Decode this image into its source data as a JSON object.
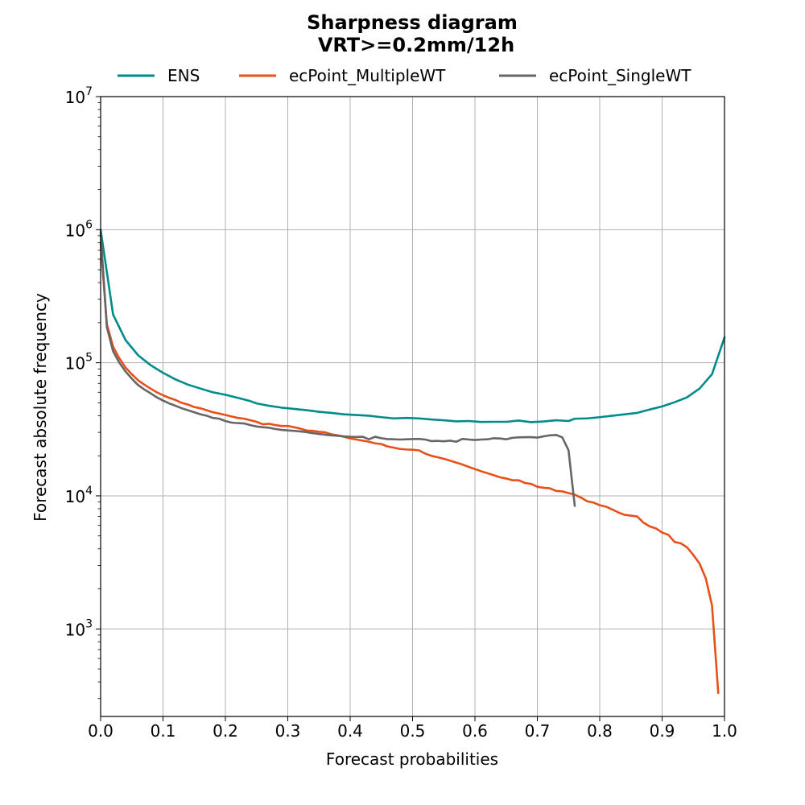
{
  "chart_data": {
    "type": "line",
    "title": "Sharpness diagram",
    "subtitle": "VRT>=0.2mm/12h",
    "xlabel": "Forecast probabilities",
    "ylabel": "Forecast absolute frequency",
    "xlim": [
      0.0,
      1.0
    ],
    "ylim": [
      220,
      10000000
    ],
    "yscale": "log",
    "grid": true,
    "legend_placement": "top-center",
    "x_ticks": [
      "0.0",
      "0.1",
      "0.2",
      "0.3",
      "0.4",
      "0.5",
      "0.6",
      "0.7",
      "0.8",
      "0.9",
      "1.0"
    ],
    "y_ticks": [
      {
        "base": "10",
        "exp": "3",
        "value": 1000
      },
      {
        "base": "10",
        "exp": "4",
        "value": 10000
      },
      {
        "base": "10",
        "exp": "5",
        "value": 100000
      },
      {
        "base": "10",
        "exp": "6",
        "value": 1000000
      },
      {
        "base": "10",
        "exp": "7",
        "value": 10000000
      }
    ],
    "series": [
      {
        "name": "ENS",
        "color": "#008b8b",
        "points": [
          [
            0.0,
            1000000
          ],
          [
            0.02,
            230000
          ],
          [
            0.04,
            148000
          ],
          [
            0.06,
            114000
          ],
          [
            0.08,
            96000
          ],
          [
            0.1,
            84000
          ],
          [
            0.12,
            75000
          ],
          [
            0.14,
            68500
          ],
          [
            0.16,
            64000
          ],
          [
            0.18,
            60000
          ],
          [
            0.2,
            57500
          ],
          [
            0.22,
            54500
          ],
          [
            0.24,
            51500
          ],
          [
            0.25,
            49500
          ],
          [
            0.27,
            47500
          ],
          [
            0.29,
            46000
          ],
          [
            0.31,
            45000
          ],
          [
            0.33,
            44000
          ],
          [
            0.35,
            42800
          ],
          [
            0.37,
            42000
          ],
          [
            0.39,
            41000
          ],
          [
            0.41,
            40500
          ],
          [
            0.43,
            40000
          ],
          [
            0.45,
            39000
          ],
          [
            0.47,
            38200
          ],
          [
            0.49,
            38500
          ],
          [
            0.51,
            38200
          ],
          [
            0.53,
            37500
          ],
          [
            0.55,
            37000
          ],
          [
            0.57,
            36300
          ],
          [
            0.59,
            36500
          ],
          [
            0.61,
            35900
          ],
          [
            0.63,
            36000
          ],
          [
            0.65,
            36000
          ],
          [
            0.67,
            36800
          ],
          [
            0.69,
            35800
          ],
          [
            0.71,
            36200
          ],
          [
            0.73,
            37000
          ],
          [
            0.75,
            36500
          ],
          [
            0.76,
            38000
          ],
          [
            0.78,
            38200
          ],
          [
            0.8,
            39000
          ],
          [
            0.82,
            40000
          ],
          [
            0.84,
            41000
          ],
          [
            0.86,
            42000
          ],
          [
            0.88,
            44500
          ],
          [
            0.9,
            47000
          ],
          [
            0.92,
            50500
          ],
          [
            0.94,
            55000
          ],
          [
            0.96,
            64000
          ],
          [
            0.98,
            82000
          ],
          [
            1.0,
            155000
          ]
        ]
      },
      {
        "name": "ecPoint_MultipleWT",
        "color": "#e8501a",
        "points": [
          [
            0.0,
            800000
          ],
          [
            0.01,
            195000
          ],
          [
            0.02,
            132000
          ],
          [
            0.03,
            108000
          ],
          [
            0.04,
            92000
          ],
          [
            0.05,
            82000
          ],
          [
            0.06,
            74000
          ],
          [
            0.07,
            68500
          ],
          [
            0.08,
            64000
          ],
          [
            0.09,
            60000
          ],
          [
            0.1,
            57000
          ],
          [
            0.11,
            54500
          ],
          [
            0.12,
            52500
          ],
          [
            0.13,
            50000
          ],
          [
            0.14,
            48500
          ],
          [
            0.15,
            46500
          ],
          [
            0.16,
            45500
          ],
          [
            0.17,
            44000
          ],
          [
            0.18,
            42500
          ],
          [
            0.19,
            41500
          ],
          [
            0.2,
            40500
          ],
          [
            0.21,
            39500
          ],
          [
            0.22,
            38500
          ],
          [
            0.23,
            38000
          ],
          [
            0.24,
            37000
          ],
          [
            0.25,
            36000
          ],
          [
            0.26,
            34500
          ],
          [
            0.27,
            34800
          ],
          [
            0.28,
            34000
          ],
          [
            0.29,
            33500
          ],
          [
            0.3,
            33500
          ],
          [
            0.31,
            32800
          ],
          [
            0.32,
            32000
          ],
          [
            0.33,
            31000
          ],
          [
            0.34,
            30800
          ],
          [
            0.35,
            30300
          ],
          [
            0.36,
            30000
          ],
          [
            0.37,
            29000
          ],
          [
            0.38,
            28500
          ],
          [
            0.39,
            27800
          ],
          [
            0.4,
            27000
          ],
          [
            0.41,
            26500
          ],
          [
            0.42,
            26000
          ],
          [
            0.43,
            25500
          ],
          [
            0.44,
            24800
          ],
          [
            0.45,
            24500
          ],
          [
            0.46,
            23500
          ],
          [
            0.47,
            23000
          ],
          [
            0.48,
            22500
          ],
          [
            0.49,
            22300
          ],
          [
            0.5,
            22200
          ],
          [
            0.51,
            22000
          ],
          [
            0.52,
            20800
          ],
          [
            0.53,
            20000
          ],
          [
            0.54,
            19500
          ],
          [
            0.55,
            19000
          ],
          [
            0.56,
            18400
          ],
          [
            0.57,
            17800
          ],
          [
            0.58,
            17200
          ],
          [
            0.59,
            16500
          ],
          [
            0.6,
            15900
          ],
          [
            0.61,
            15300
          ],
          [
            0.62,
            14800
          ],
          [
            0.63,
            14300
          ],
          [
            0.64,
            13800
          ],
          [
            0.65,
            13500
          ],
          [
            0.66,
            13100
          ],
          [
            0.67,
            13100
          ],
          [
            0.68,
            12500
          ],
          [
            0.69,
            12300
          ],
          [
            0.7,
            11700
          ],
          [
            0.71,
            11500
          ],
          [
            0.72,
            11400
          ],
          [
            0.73,
            10900
          ],
          [
            0.74,
            10800
          ],
          [
            0.75,
            10500
          ],
          [
            0.76,
            10200
          ],
          [
            0.77,
            9700
          ],
          [
            0.78,
            9100
          ],
          [
            0.79,
            8900
          ],
          [
            0.8,
            8500
          ],
          [
            0.81,
            8300
          ],
          [
            0.82,
            7900
          ],
          [
            0.83,
            7500
          ],
          [
            0.84,
            7200
          ],
          [
            0.85,
            7100
          ],
          [
            0.86,
            7000
          ],
          [
            0.87,
            6300
          ],
          [
            0.88,
            5900
          ],
          [
            0.89,
            5700
          ],
          [
            0.9,
            5300
          ],
          [
            0.91,
            5100
          ],
          [
            0.92,
            4500
          ],
          [
            0.93,
            4400
          ],
          [
            0.94,
            4100
          ],
          [
            0.95,
            3600
          ],
          [
            0.96,
            3100
          ],
          [
            0.97,
            2400
          ],
          [
            0.98,
            1500
          ],
          [
            0.99,
            330
          ]
        ]
      },
      {
        "name": "ecPoint_SingleWT",
        "color": "#666666",
        "points": [
          [
            0.0,
            950000
          ],
          [
            0.01,
            185000
          ],
          [
            0.02,
            122000
          ],
          [
            0.03,
            100000
          ],
          [
            0.04,
            86000
          ],
          [
            0.05,
            76000
          ],
          [
            0.06,
            68000
          ],
          [
            0.07,
            63000
          ],
          [
            0.08,
            59000
          ],
          [
            0.09,
            55000
          ],
          [
            0.1,
            52000
          ],
          [
            0.11,
            49500
          ],
          [
            0.12,
            47500
          ],
          [
            0.13,
            45500
          ],
          [
            0.14,
            44000
          ],
          [
            0.15,
            42500
          ],
          [
            0.16,
            41000
          ],
          [
            0.17,
            40000
          ],
          [
            0.18,
            38500
          ],
          [
            0.19,
            38000
          ],
          [
            0.2,
            36500
          ],
          [
            0.21,
            35500
          ],
          [
            0.22,
            35200
          ],
          [
            0.23,
            35000
          ],
          [
            0.24,
            34000
          ],
          [
            0.25,
            33200
          ],
          [
            0.26,
            32800
          ],
          [
            0.27,
            32500
          ],
          [
            0.28,
            31800
          ],
          [
            0.29,
            31300
          ],
          [
            0.3,
            31000
          ],
          [
            0.31,
            30800
          ],
          [
            0.32,
            30500
          ],
          [
            0.33,
            30100
          ],
          [
            0.34,
            29600
          ],
          [
            0.35,
            29200
          ],
          [
            0.36,
            28800
          ],
          [
            0.37,
            28500
          ],
          [
            0.38,
            28300
          ],
          [
            0.39,
            28000
          ],
          [
            0.4,
            27800
          ],
          [
            0.41,
            27700
          ],
          [
            0.42,
            27800
          ],
          [
            0.43,
            26600
          ],
          [
            0.44,
            27800
          ],
          [
            0.45,
            27100
          ],
          [
            0.46,
            26700
          ],
          [
            0.47,
            26600
          ],
          [
            0.48,
            26500
          ],
          [
            0.49,
            26600
          ],
          [
            0.5,
            26700
          ],
          [
            0.51,
            26800
          ],
          [
            0.52,
            26500
          ],
          [
            0.53,
            25800
          ],
          [
            0.54,
            25900
          ],
          [
            0.55,
            25700
          ],
          [
            0.56,
            26000
          ],
          [
            0.57,
            25500
          ],
          [
            0.58,
            26800
          ],
          [
            0.59,
            26500
          ],
          [
            0.6,
            26300
          ],
          [
            0.61,
            26500
          ],
          [
            0.62,
            26600
          ],
          [
            0.63,
            27100
          ],
          [
            0.64,
            27000
          ],
          [
            0.65,
            26600
          ],
          [
            0.66,
            27300
          ],
          [
            0.67,
            27500
          ],
          [
            0.68,
            27600
          ],
          [
            0.69,
            27600
          ],
          [
            0.7,
            27400
          ],
          [
            0.71,
            28000
          ],
          [
            0.72,
            28500
          ],
          [
            0.73,
            28700
          ],
          [
            0.74,
            27500
          ],
          [
            0.75,
            22000
          ],
          [
            0.76,
            8400
          ]
        ]
      }
    ]
  }
}
